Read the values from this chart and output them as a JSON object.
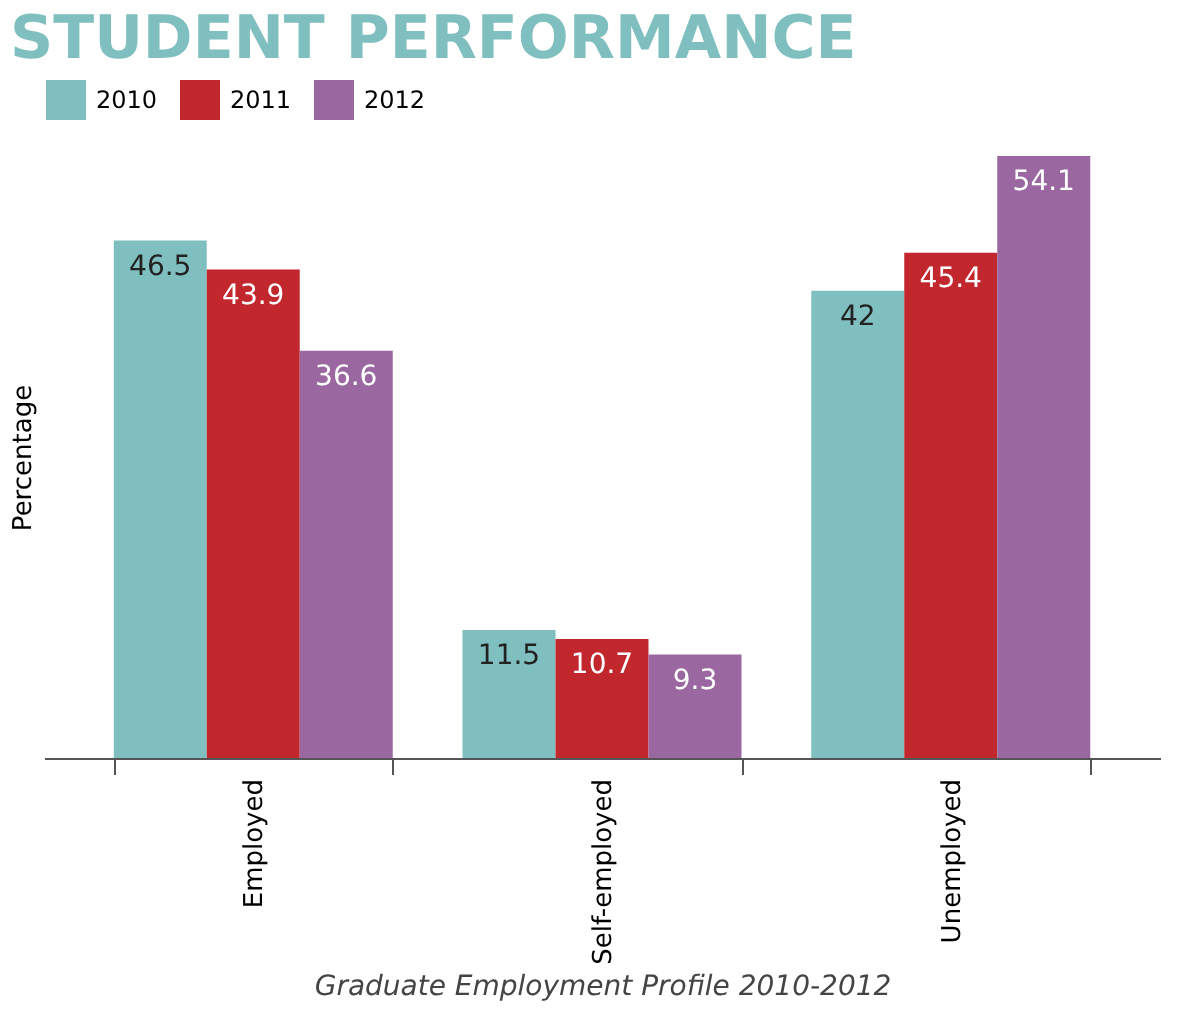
{
  "chart_data": {
    "type": "bar",
    "title": "STUDENT PERFORMANCE",
    "xlabel": "Graduate Employment Profile 2010-2012",
    "ylabel": "Percentage",
    "categories": [
      "Employed",
      "Self-employed",
      "Unemployed"
    ],
    "series": [
      {
        "name": "2010",
        "color": "#80bfbf",
        "values": [
          46.5,
          11.5,
          42
        ]
      },
      {
        "name": "2011",
        "color": "#c1272d",
        "values": [
          43.9,
          10.7,
          45.4
        ]
      },
      {
        "name": "2012",
        "color": "#9a67a0",
        "values": [
          36.6,
          9.3,
          54.1
        ]
      }
    ],
    "data_labels": true,
    "legend": "top left",
    "grid": false,
    "tick_labels": "x"
  }
}
